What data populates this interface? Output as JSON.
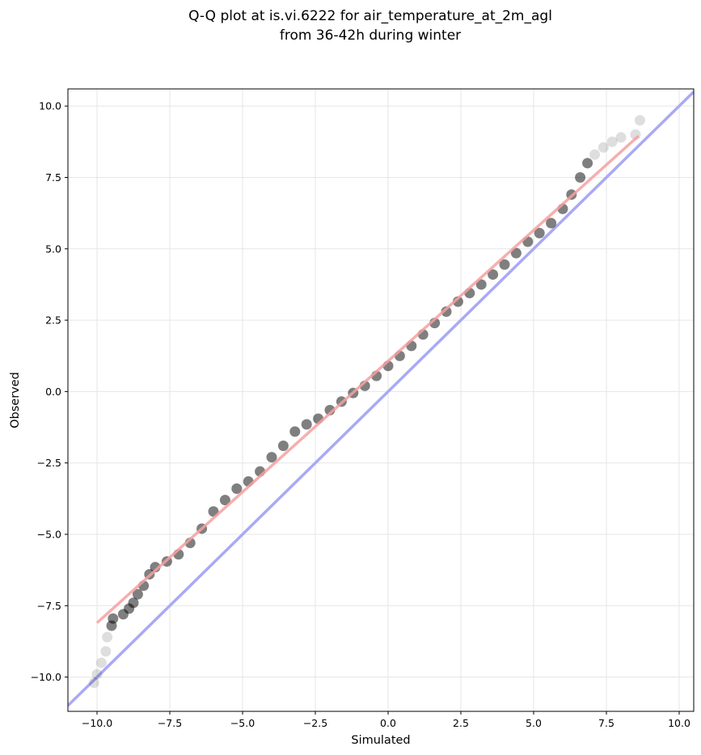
{
  "chart_data": {
    "type": "scatter",
    "title_lines": [
      "Q-Q plot at is.vi.6222 for air_temperature_at_2m_agl",
      "from 36-42h during winter"
    ],
    "xlabel": "Simulated",
    "ylabel": "Observed",
    "xlim": [
      -11.0,
      10.5
    ],
    "ylim": [
      -11.2,
      10.6
    ],
    "x_ticks": [
      -10.0,
      -7.5,
      -5.0,
      -2.5,
      0.0,
      2.5,
      5.0,
      7.5,
      10.0
    ],
    "y_ticks": [
      -10.0,
      -7.5,
      -5.0,
      -2.5,
      0.0,
      2.5,
      5.0,
      7.5,
      10.0
    ],
    "x_tick_labels": [
      "−10.0",
      "−7.5",
      "−5.0",
      "−2.5",
      "0.0",
      "2.5",
      "5.0",
      "7.5",
      "10.0"
    ],
    "y_tick_labels": [
      "−10.0",
      "−7.5",
      "−5.0",
      "−2.5",
      "0.0",
      "2.5",
      "5.0",
      "7.5",
      "10.0"
    ],
    "grid": true,
    "quantile_points": [
      [
        -10.1,
        -10.2
      ],
      [
        -10.0,
        -9.9
      ],
      [
        -9.85,
        -9.5
      ],
      [
        -9.7,
        -9.1
      ],
      [
        -9.65,
        -8.6
      ],
      [
        -9.5,
        -8.2
      ],
      [
        -9.45,
        -7.95
      ],
      [
        -9.1,
        -7.8
      ],
      [
        -8.9,
        -7.6
      ],
      [
        -8.75,
        -7.4
      ],
      [
        -8.6,
        -7.1
      ],
      [
        -8.4,
        -6.8
      ],
      [
        -8.2,
        -6.4
      ],
      [
        -8.0,
        -6.15
      ],
      [
        -7.6,
        -5.95
      ],
      [
        -7.2,
        -5.7
      ],
      [
        -6.8,
        -5.3
      ],
      [
        -6.4,
        -4.8
      ],
      [
        -6.0,
        -4.2
      ],
      [
        -5.6,
        -3.8
      ],
      [
        -5.2,
        -3.4
      ],
      [
        -4.8,
        -3.15
      ],
      [
        -4.4,
        -2.8
      ],
      [
        -4.0,
        -2.3
      ],
      [
        -3.6,
        -1.9
      ],
      [
        -3.2,
        -1.4
      ],
      [
        -2.8,
        -1.15
      ],
      [
        -2.4,
        -0.95
      ],
      [
        -2.0,
        -0.65
      ],
      [
        -1.6,
        -0.35
      ],
      [
        -1.2,
        -0.05
      ],
      [
        -0.8,
        0.2
      ],
      [
        -0.4,
        0.55
      ],
      [
        0.0,
        0.9
      ],
      [
        0.4,
        1.25
      ],
      [
        0.8,
        1.6
      ],
      [
        1.2,
        2.0
      ],
      [
        1.6,
        2.4
      ],
      [
        2.0,
        2.8
      ],
      [
        2.4,
        3.15
      ],
      [
        2.8,
        3.45
      ],
      [
        3.2,
        3.75
      ],
      [
        3.6,
        4.1
      ],
      [
        4.0,
        4.45
      ],
      [
        4.4,
        4.85
      ],
      [
        4.8,
        5.25
      ],
      [
        5.2,
        5.55
      ],
      [
        5.6,
        5.9
      ],
      [
        6.0,
        6.4
      ],
      [
        6.3,
        6.9
      ],
      [
        6.6,
        7.5
      ],
      [
        6.85,
        8.0
      ],
      [
        7.1,
        8.3
      ],
      [
        7.4,
        8.55
      ],
      [
        7.7,
        8.75
      ],
      [
        8.0,
        8.9
      ],
      [
        8.5,
        9.0
      ],
      [
        8.65,
        9.5
      ]
    ],
    "fit_line": {
      "x": [
        -10.0,
        8.6
      ],
      "y": [
        -8.1,
        8.95
      ],
      "color": "#f4a0a0"
    },
    "identity_line": {
      "x": [
        -11.0,
        10.5
      ],
      "y": [
        -11.0,
        10.5
      ],
      "color": "#a9a9f5"
    },
    "point_color": "#000000"
  }
}
